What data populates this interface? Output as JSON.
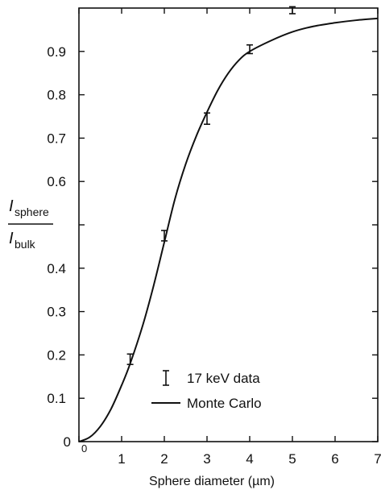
{
  "chart_data": {
    "type": "line",
    "title": "",
    "xlabel": "Sphere diameter (µm)",
    "ylabel": {
      "numerator_main": "I",
      "numerator_sub": "sphere",
      "denominator_main": "I",
      "denominator_sub": "bulk"
    },
    "xlim": [
      0,
      7
    ],
    "ylim": [
      0,
      1.0
    ],
    "x_ticks": [
      0,
      1,
      2,
      3,
      4,
      5,
      6,
      7
    ],
    "y_ticks": [
      0,
      0.1,
      0.2,
      0.3,
      0.4,
      0.5,
      0.6,
      0.7,
      0.8,
      0.9
    ],
    "x_tick_labels": [
      "0",
      "1",
      "2",
      "3",
      "4",
      "5",
      "6",
      "7"
    ],
    "y_tick_labels": [
      "0",
      "0.1",
      "0.2",
      "0.3",
      "0.4",
      "",
      "0.6",
      "0.7",
      "0.8",
      "0.9"
    ],
    "y_origin_label": "0",
    "grid": false,
    "legend_position": "bottom-right",
    "series": [
      {
        "name": "17 keV data",
        "kind": "errorbar",
        "points": [
          {
            "x": 1.2,
            "y": 0.19,
            "err": 0.012
          },
          {
            "x": 2.0,
            "y": 0.475,
            "err": 0.012
          },
          {
            "x": 3.0,
            "y": 0.745,
            "err": 0.013
          },
          {
            "x": 4.0,
            "y": 0.905,
            "err": 0.01
          },
          {
            "x": 5.0,
            "y": 0.995,
            "err": 0.008
          }
        ]
      },
      {
        "name": "Monte Carlo",
        "kind": "line",
        "x": [
          0,
          0.25,
          0.5,
          0.75,
          1.0,
          1.2,
          1.5,
          1.75,
          2.0,
          2.25,
          2.5,
          2.75,
          3.0,
          3.25,
          3.5,
          3.75,
          4.0,
          4.5,
          5.0,
          5.5,
          6.0,
          6.5,
          7.0
        ],
        "y": [
          0,
          0.01,
          0.035,
          0.075,
          0.13,
          0.18,
          0.27,
          0.36,
          0.46,
          0.56,
          0.64,
          0.705,
          0.76,
          0.81,
          0.85,
          0.88,
          0.9,
          0.925,
          0.945,
          0.958,
          0.966,
          0.972,
          0.976
        ]
      }
    ]
  }
}
